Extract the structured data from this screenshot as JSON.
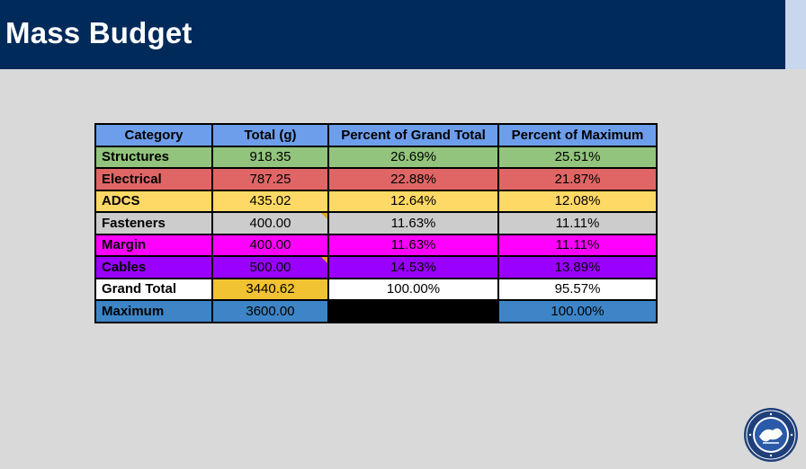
{
  "slide": {
    "title": "Mass Budget"
  },
  "table": {
    "headers": [
      "Category",
      "Total (g)",
      "Percent of Grand Total",
      "Percent of Maximum"
    ],
    "header_color": "#6d9eeb",
    "rows": [
      {
        "category": "Structures",
        "total": "918.35",
        "pct_grand": "26.69%",
        "pct_max": "25.51%",
        "color": "#93c47d"
      },
      {
        "category": "Electrical",
        "total": "787.25",
        "pct_grand": "22.88%",
        "pct_max": "21.87%",
        "color": "#e06666"
      },
      {
        "category": "ADCS",
        "total": "435.02",
        "pct_grand": "12.64%",
        "pct_max": "12.08%",
        "color": "#ffd966"
      },
      {
        "category": "Fasteners",
        "total": "400.00",
        "pct_grand": "11.63%",
        "pct_max": "11.11%",
        "color": "#cccccc"
      },
      {
        "category": "Margin",
        "total": "400.00",
        "pct_grand": "11.63%",
        "pct_max": "11.11%",
        "color": "#ff00ff"
      },
      {
        "category": "Cables",
        "total": "500.00",
        "pct_grand": "14.53%",
        "pct_max": "13.89%",
        "color": "#9900ff"
      },
      {
        "category": "Grand Total",
        "total": "3440.62",
        "pct_grand": "100.00%",
        "pct_max": "95.57%",
        "color": "#ffffff",
        "total_color": "#f1c232"
      },
      {
        "category": "Maximum",
        "total": "3600.00",
        "pct_grand": "",
        "pct_max": "100.00%",
        "color": "#3d85c6",
        "pct_grand_color": "#000000"
      }
    ]
  },
  "logo": {
    "icon": "university-seal-icon"
  }
}
